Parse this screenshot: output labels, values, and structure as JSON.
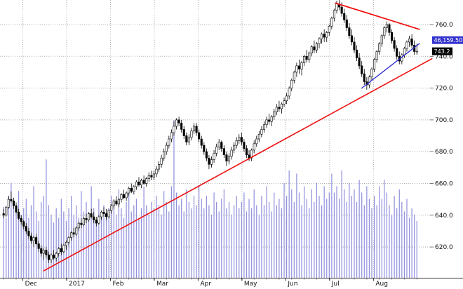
{
  "chart_data": {
    "type": "candlestick",
    "volume_overlay": true,
    "colors": {
      "up": "#ffffff",
      "down": "#000000",
      "candle_outline": "#000000",
      "volume": "#8f8fdd",
      "grid": "#b3b3b3",
      "axis_text": "#111111",
      "trend_red": "#ee1111",
      "trend_blue": "#2a2ad2"
    },
    "y_axis": {
      "side": "right",
      "ticks": [
        {
          "label": "760.0",
          "value": 760
        },
        {
          "label": "740.0",
          "value": 740
        },
        {
          "label": "720.0",
          "value": 720
        },
        {
          "label": "700.0",
          "value": 700
        },
        {
          "label": "680.0",
          "value": 680
        },
        {
          "label": "660.0",
          "value": 660
        },
        {
          "label": "640.0",
          "value": 640
        },
        {
          "label": "620.0",
          "value": 620
        }
      ]
    },
    "x_axis": {
      "labels": [
        {
          "label": "Dec",
          "idx": 8
        },
        {
          "label": "2017",
          "idx": 25.5
        },
        {
          "label": "Feb",
          "idx": 43
        },
        {
          "label": "Mar",
          "idx": 60.5
        },
        {
          "label": "Apr",
          "idx": 78
        },
        {
          "label": "May",
          "idx": 95.5
        },
        {
          "label": "Jun",
          "idx": 113
        },
        {
          "label": "Jul",
          "idx": 130.5
        },
        {
          "label": "Aug",
          "idx": 148
        }
      ]
    },
    "price_tags": {
      "indicator": {
        "text": "46,159.50",
        "price": 750.2,
        "bg": "#3434cf",
        "fg": "#ffffff"
      },
      "last": {
        "text": "743.2",
        "price": 743.2,
        "bg": "#000000",
        "fg": "#ffffff"
      }
    },
    "trendlines": [
      {
        "name": "rising-support-trendline",
        "color": "#ee1111",
        "width": 1.6,
        "from": {
          "idx": 16,
          "price": 605
        },
        "to": {
          "idx": 171,
          "price": 738.5
        }
      },
      {
        "name": "descending-resistance-trendline",
        "color": "#ee1111",
        "width": 1.8,
        "from": {
          "idx": 132.5,
          "price": 773.5
        },
        "to": {
          "idx": 166,
          "price": 757
        }
      },
      {
        "name": "rising-pennant-trendline",
        "color": "#2a2ad2",
        "width": 1.3,
        "from": {
          "idx": 143,
          "price": 720
        },
        "to": {
          "idx": 166,
          "price": 748
        }
      }
    ],
    "candles": [
      [
        641,
        644,
        638,
        640
      ],
      [
        640,
        646,
        639,
        645
      ],
      [
        645,
        652,
        644,
        650
      ],
      [
        650,
        655,
        648,
        649
      ],
      [
        649,
        651,
        644,
        646
      ],
      [
        646,
        648,
        641,
        642
      ],
      [
        642,
        644,
        637,
        638
      ],
      [
        638,
        640,
        634,
        636
      ],
      [
        636,
        637,
        631,
        633
      ],
      [
        633,
        635,
        628,
        630
      ],
      [
        630,
        632,
        625,
        627
      ],
      [
        627,
        629,
        622,
        624
      ],
      [
        624,
        627,
        620,
        626
      ],
      [
        626,
        628,
        621,
        622
      ],
      [
        622,
        624,
        617,
        619
      ],
      [
        619,
        621,
        614,
        616
      ],
      [
        616,
        619,
        612,
        618
      ],
      [
        618,
        620,
        613,
        615
      ],
      [
        615,
        617,
        610,
        612
      ],
      [
        612,
        616,
        610,
        615
      ],
      [
        615,
        618,
        612,
        613
      ],
      [
        613,
        617,
        611,
        616
      ],
      [
        616,
        620,
        614,
        619
      ],
      [
        619,
        622,
        615,
        617
      ],
      [
        617,
        622,
        616,
        621
      ],
      [
        621,
        624,
        618,
        623
      ],
      [
        623,
        627,
        621,
        626
      ],
      [
        626,
        630,
        624,
        629
      ],
      [
        629,
        632,
        626,
        628
      ],
      [
        628,
        633,
        627,
        632
      ],
      [
        632,
        636,
        630,
        635
      ],
      [
        635,
        638,
        632,
        634
      ],
      [
        634,
        639,
        633,
        638
      ],
      [
        638,
        641,
        635,
        637
      ],
      [
        637,
        642,
        636,
        641
      ],
      [
        641,
        644,
        638,
        639
      ],
      [
        639,
        642,
        635,
        637
      ],
      [
        637,
        639,
        633,
        635
      ],
      [
        635,
        640,
        634,
        639
      ],
      [
        639,
        643,
        637,
        642
      ],
      [
        642,
        645,
        639,
        641
      ],
      [
        641,
        644,
        637,
        639
      ],
      [
        639,
        644,
        638,
        643
      ],
      [
        643,
        647,
        641,
        646
      ],
      [
        646,
        650,
        644,
        649
      ],
      [
        649,
        652,
        646,
        647
      ],
      [
        647,
        651,
        645,
        650
      ],
      [
        650,
        654,
        648,
        653
      ],
      [
        653,
        656,
        650,
        651
      ],
      [
        651,
        655,
        649,
        654
      ],
      [
        654,
        658,
        652,
        657
      ],
      [
        657,
        660,
        654,
        655
      ],
      [
        655,
        659,
        653,
        658
      ],
      [
        658,
        662,
        656,
        661
      ],
      [
        661,
        664,
        658,
        659
      ],
      [
        659,
        663,
        657,
        662
      ],
      [
        662,
        665,
        659,
        660
      ],
      [
        660,
        664,
        658,
        663
      ],
      [
        663,
        667,
        661,
        665
      ],
      [
        665,
        668,
        662,
        664
      ],
      [
        664,
        668,
        662,
        666
      ],
      [
        666,
        671,
        664,
        669
      ],
      [
        669,
        674,
        667,
        672
      ],
      [
        672,
        678,
        670,
        676
      ],
      [
        676,
        682,
        674,
        680
      ],
      [
        680,
        686,
        678,
        684
      ],
      [
        684,
        690,
        682,
        688
      ],
      [
        688,
        694,
        686,
        692
      ],
      [
        692,
        699,
        690,
        696
      ],
      [
        696,
        701,
        694,
        700
      ],
      [
        700,
        702,
        696,
        698
      ],
      [
        698,
        700,
        692,
        694
      ],
      [
        694,
        696,
        688,
        690
      ],
      [
        690,
        692,
        684,
        686
      ],
      [
        686,
        691,
        684,
        689
      ],
      [
        689,
        695,
        687,
        693
      ],
      [
        693,
        698,
        691,
        696
      ],
      [
        696,
        698,
        690,
        692
      ],
      [
        692,
        694,
        686,
        688
      ],
      [
        688,
        690,
        682,
        684
      ],
      [
        684,
        686,
        678,
        680
      ],
      [
        680,
        682,
        674,
        676
      ],
      [
        676,
        678,
        669,
        672
      ],
      [
        672,
        677,
        670,
        675
      ],
      [
        675,
        681,
        673,
        679
      ],
      [
        679,
        685,
        677,
        683
      ],
      [
        683,
        688,
        681,
        686
      ],
      [
        686,
        687,
        680,
        682
      ],
      [
        682,
        684,
        676,
        678
      ],
      [
        678,
        680,
        671,
        674
      ],
      [
        674,
        679,
        672,
        677
      ],
      [
        677,
        683,
        675,
        681
      ],
      [
        681,
        686,
        679,
        684
      ],
      [
        684,
        689,
        682,
        687
      ],
      [
        687,
        691,
        685,
        689
      ],
      [
        689,
        692,
        684,
        686
      ],
      [
        686,
        688,
        680,
        682
      ],
      [
        682,
        684,
        676,
        678
      ],
      [
        678,
        681,
        674,
        676
      ],
      [
        676,
        682,
        674,
        681
      ],
      [
        681,
        687,
        679,
        685
      ],
      [
        685,
        690,
        683,
        688
      ],
      [
        688,
        693,
        686,
        691
      ],
      [
        691,
        696,
        689,
        694
      ],
      [
        694,
        699,
        692,
        697
      ],
      [
        697,
        702,
        695,
        700
      ],
      [
        700,
        704,
        697,
        699
      ],
      [
        699,
        703,
        696,
        702
      ],
      [
        702,
        707,
        700,
        705
      ],
      [
        705,
        710,
        703,
        708
      ],
      [
        708,
        712,
        705,
        707
      ],
      [
        707,
        711,
        704,
        710
      ],
      [
        710,
        714,
        708,
        712
      ],
      [
        712,
        717,
        710,
        715
      ],
      [
        715,
        721,
        713,
        720
      ],
      [
        720,
        726,
        718,
        725
      ],
      [
        725,
        731,
        723,
        730
      ],
      [
        730,
        736,
        727,
        734
      ],
      [
        734,
        738,
        729,
        732
      ],
      [
        732,
        737,
        728,
        736
      ],
      [
        736,
        741,
        734,
        740
      ],
      [
        740,
        744,
        736,
        738
      ],
      [
        738,
        743,
        736,
        742
      ],
      [
        742,
        747,
        740,
        746
      ],
      [
        746,
        750,
        742,
        744
      ],
      [
        744,
        749,
        742,
        748
      ],
      [
        748,
        752,
        745,
        751
      ],
      [
        751,
        755,
        748,
        754
      ],
      [
        754,
        757,
        749,
        752
      ],
      [
        752,
        756,
        749,
        755
      ],
      [
        755,
        760,
        753,
        759
      ],
      [
        759,
        765,
        757,
        764
      ],
      [
        764,
        770,
        762,
        769
      ],
      [
        769,
        775,
        767,
        773
      ],
      [
        773,
        776,
        769,
        771
      ],
      [
        771,
        774,
        765,
        767
      ],
      [
        767,
        770,
        761,
        763
      ],
      [
        763,
        766,
        756,
        758
      ],
      [
        758,
        761,
        751,
        753
      ],
      [
        753,
        757,
        747,
        749
      ],
      [
        749,
        752,
        742,
        744
      ],
      [
        744,
        747,
        737,
        739
      ],
      [
        739,
        742,
        732,
        734
      ],
      [
        734,
        737,
        727,
        729
      ],
      [
        729,
        732,
        722,
        724
      ],
      [
        724,
        727,
        719,
        722
      ],
      [
        722,
        728,
        720,
        727
      ],
      [
        727,
        733,
        725,
        732
      ],
      [
        732,
        739,
        730,
        738
      ],
      [
        738,
        744,
        736,
        743
      ],
      [
        743,
        749,
        741,
        748
      ],
      [
        748,
        754,
        746,
        753
      ],
      [
        753,
        759,
        751,
        758
      ],
      [
        758,
        762,
        755,
        760
      ],
      [
        760,
        761,
        753,
        755
      ],
      [
        755,
        757,
        748,
        750
      ],
      [
        750,
        752,
        743,
        745
      ],
      [
        745,
        747,
        738,
        740
      ],
      [
        740,
        743,
        735,
        737
      ],
      [
        737,
        742,
        735,
        741
      ],
      [
        741,
        746,
        739,
        745
      ],
      [
        745,
        750,
        743,
        749
      ],
      [
        749,
        753,
        746,
        751
      ],
      [
        751,
        754,
        745,
        747
      ],
      [
        747,
        750,
        741,
        743
      ],
      [
        743,
        748,
        741,
        743.2
      ]
    ],
    "volumes": [
      45,
      38,
      52,
      60,
      48,
      42,
      55,
      40,
      44,
      50,
      38,
      46,
      58,
      42,
      36,
      48,
      52,
      75,
      46,
      40,
      35,
      44,
      38,
      50,
      42,
      36,
      44,
      52,
      40,
      46,
      38,
      55,
      42,
      48,
      40,
      58,
      44,
      36,
      50,
      42,
      46,
      38,
      44,
      52,
      46,
      40,
      56,
      44,
      38,
      48,
      54,
      42,
      46,
      50,
      38,
      44,
      58,
      46,
      40,
      48,
      44,
      52,
      46,
      40,
      55,
      48,
      42,
      58,
      100,
      54,
      46,
      50,
      42,
      56,
      48,
      44,
      52,
      46,
      58,
      50,
      44,
      52,
      46,
      40,
      54,
      48,
      42,
      50,
      56,
      44,
      48,
      40,
      46,
      52,
      44,
      48,
      54,
      42,
      50,
      44,
      56,
      46,
      40,
      52,
      46,
      58,
      48,
      42,
      54,
      46,
      50,
      44,
      60,
      52,
      68,
      56,
      48,
      66,
      54,
      46,
      58,
      50,
      44,
      56,
      48,
      60,
      52,
      46,
      58,
      50,
      54,
      66,
      54,
      58,
      50,
      68,
      56,
      48,
      60,
      52,
      56,
      48,
      62,
      54,
      46,
      58,
      50,
      44,
      52,
      46,
      58,
      50,
      62,
      54,
      46,
      40,
      52,
      44,
      56,
      48,
      42,
      50,
      38,
      44,
      40,
      36
    ]
  }
}
